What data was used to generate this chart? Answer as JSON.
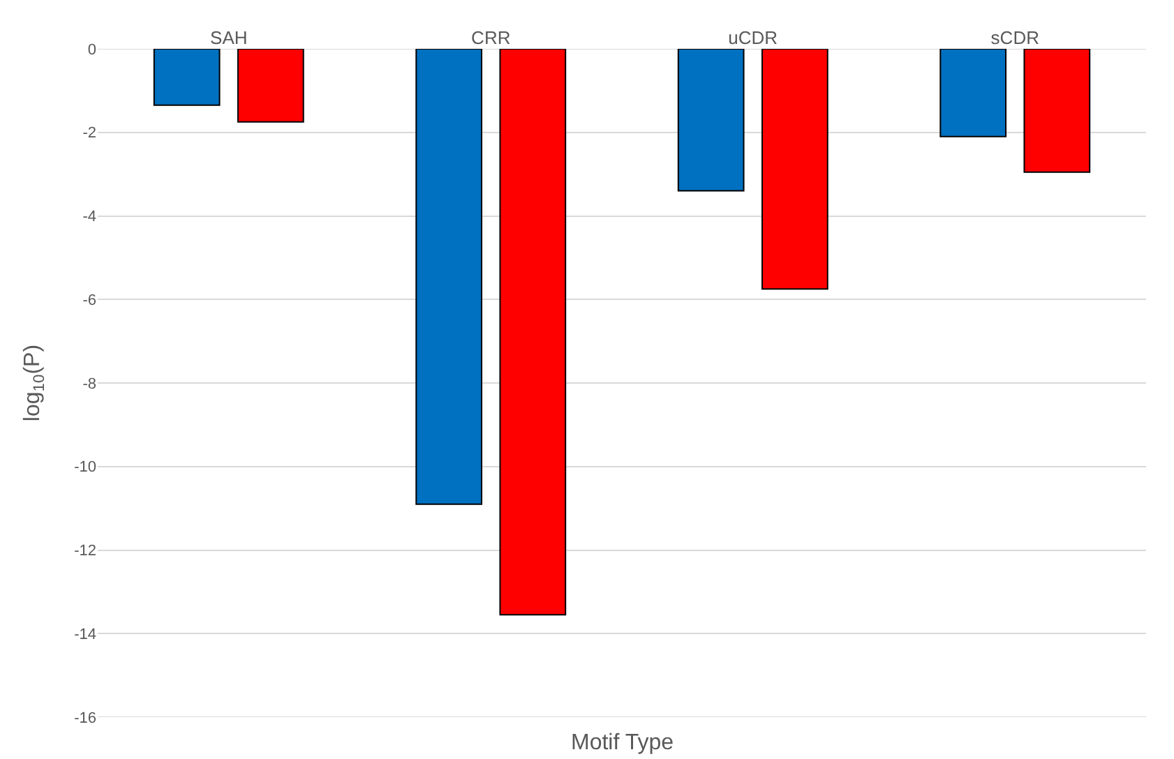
{
  "chart_data": {
    "type": "bar",
    "categories": [
      "SAH",
      "CRR",
      "uCDR",
      "sCDR"
    ],
    "series": [
      {
        "color": "#0070c0",
        "values": [
          -1.35,
          -10.9,
          -3.4,
          -2.1
        ]
      },
      {
        "color": "#ff0000",
        "values": [
          -1.75,
          -13.55,
          -5.75,
          -2.95
        ]
      }
    ],
    "xlabel": "Motif Type",
    "ylabel": "log$_{10}$(P)",
    "ylim": [
      -16,
      0
    ],
    "yticks": [
      -16,
      -14,
      -12,
      -10,
      -8,
      -6,
      -4,
      -2,
      0
    ],
    "grid": "y"
  }
}
